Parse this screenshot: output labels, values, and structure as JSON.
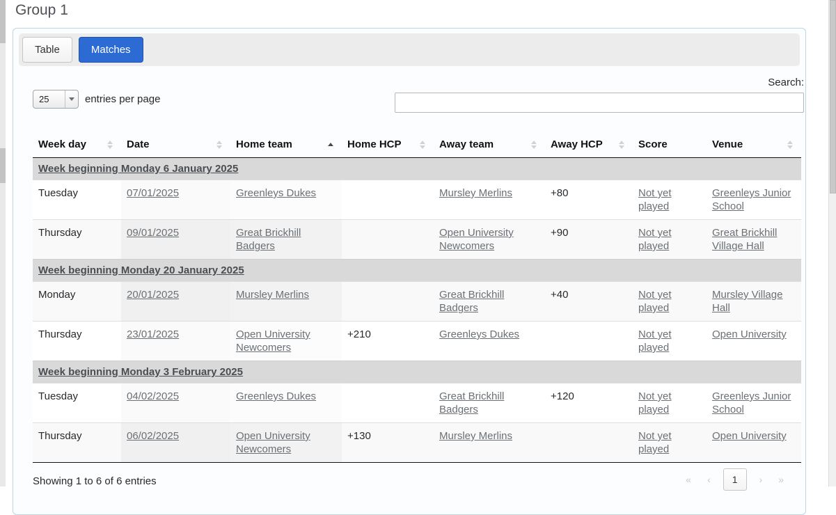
{
  "page": {
    "title": "Group 1"
  },
  "tabs": [
    {
      "label": "Table",
      "active": false
    },
    {
      "label": "Matches",
      "active": true
    }
  ],
  "controls": {
    "page_length": "25",
    "entries_label": "entries per page",
    "search_label": "Search:",
    "search_value": ""
  },
  "table": {
    "columns": [
      {
        "label": "Week day",
        "sort": "unsorted"
      },
      {
        "label": "Date",
        "sort": "unsorted"
      },
      {
        "label": "Home team",
        "sort": "asc"
      },
      {
        "label": "Home HCP",
        "sort": "unsorted"
      },
      {
        "label": "Away team",
        "sort": "unsorted"
      },
      {
        "label": "Away HCP",
        "sort": "unsorted"
      },
      {
        "label": "Score",
        "sort": "none"
      },
      {
        "label": "Venue",
        "sort": "unsorted"
      }
    ],
    "groups": [
      {
        "heading": "Week beginning Monday 6 January 2025",
        "rows": [
          {
            "week_day": "Tuesday",
            "date": "07/01/2025",
            "home_team": "Greenleys Dukes",
            "home_hcp": "",
            "away_team": "Mursley Merlins",
            "away_hcp": "+80",
            "score": "Not yet played",
            "venue": "Greenleys Junior School",
            "shaded": false
          },
          {
            "week_day": "Thursday",
            "date": "09/01/2025",
            "home_team": "Great Brickhill Badgers",
            "home_hcp": "",
            "away_team": "Open University Newcomers",
            "away_hcp": "+90",
            "score": "Not yet played",
            "venue": "Great Brickhill Village Hall",
            "shaded": true
          }
        ]
      },
      {
        "heading": "Week beginning Monday 20 January 2025",
        "rows": [
          {
            "week_day": "Monday",
            "date": "20/01/2025",
            "home_team": "Mursley Merlins",
            "home_hcp": "",
            "away_team": "Great Brickhill Badgers",
            "away_hcp": "+40",
            "score": "Not yet played",
            "venue": "Mursley Village Hall",
            "shaded": true
          },
          {
            "week_day": "Thursday",
            "date": "23/01/2025",
            "home_team": "Open University Newcomers",
            "home_hcp": "+210",
            "away_team": "Greenleys Dukes",
            "away_hcp": "",
            "score": "Not yet played",
            "venue": "Open University",
            "shaded": false
          }
        ]
      },
      {
        "heading": "Week beginning Monday 3 February 2025",
        "rows": [
          {
            "week_day": "Tuesday",
            "date": "04/02/2025",
            "home_team": "Greenleys Dukes",
            "home_hcp": "",
            "away_team": "Great Brickhill Badgers",
            "away_hcp": "+120",
            "score": "Not yet played",
            "venue": "Greenleys Junior School",
            "shaded": false
          },
          {
            "week_day": "Thursday",
            "date": "06/02/2025",
            "home_team": "Open University Newcomers",
            "home_hcp": "+130",
            "away_team": "Mursley Merlins",
            "away_hcp": "",
            "score": "Not yet played",
            "venue": "Open University",
            "shaded": true
          }
        ]
      }
    ]
  },
  "footer": {
    "info": "Showing 1 to 6 of 6 entries",
    "pagination": {
      "first": "«",
      "prev": "‹",
      "page": "1",
      "next": "›",
      "last": "»"
    }
  },
  "colors": {
    "accent_blue": "#2c6bd4",
    "panel_border": "#bcd6e3",
    "group_row_bg": "#d9d9d9",
    "link": "#6b7075",
    "header_border": "#111111"
  }
}
